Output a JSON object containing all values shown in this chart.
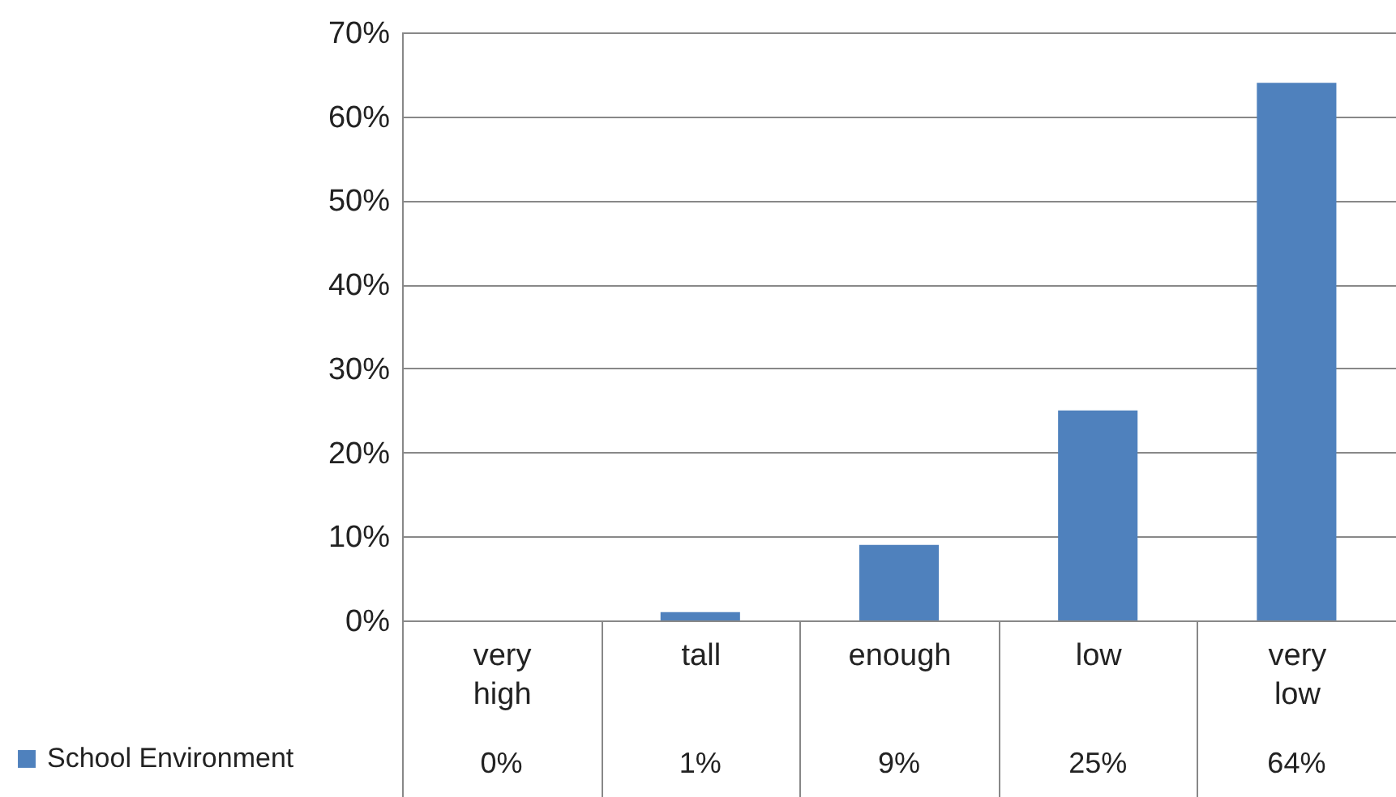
{
  "chart_data": {
    "type": "bar",
    "categories": [
      "very high",
      "tall",
      "enough",
      "low",
      "very low"
    ],
    "series": [
      {
        "name": "School Environment",
        "color": "#4f81bd",
        "values": [
          0,
          1,
          9,
          25,
          64
        ],
        "value_labels": [
          "0%",
          "1%",
          "9%",
          "25%",
          "64%"
        ]
      }
    ],
    "ylim": [
      0,
      70
    ],
    "yticks": [
      {
        "value": 0,
        "label": "0%"
      },
      {
        "value": 10,
        "label": "10%"
      },
      {
        "value": 20,
        "label": "20%"
      },
      {
        "value": 30,
        "label": "30%"
      },
      {
        "value": 40,
        "label": "40%"
      },
      {
        "value": 50,
        "label": "50%"
      },
      {
        "value": 60,
        "label": "60%"
      },
      {
        "value": 70,
        "label": "70%"
      }
    ],
    "grid": "y",
    "legend": "bottom left"
  }
}
